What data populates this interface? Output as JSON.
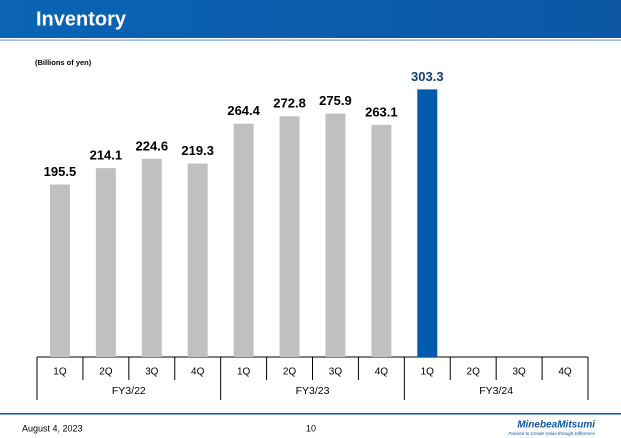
{
  "header": {
    "title": "Inventory"
  },
  "chart_data": {
    "type": "bar",
    "unit_label": "(Billions of yen)",
    "categories": [
      "1Q",
      "2Q",
      "3Q",
      "4Q",
      "1Q",
      "2Q",
      "3Q",
      "4Q",
      "1Q",
      "2Q",
      "3Q",
      "4Q"
    ],
    "groups": [
      "FY3/22",
      "FY3/23",
      "FY3/24"
    ],
    "values": [
      195.5,
      214.1,
      224.6,
      219.3,
      264.4,
      272.8,
      275.9,
      263.1,
      303.3,
      null,
      null,
      null
    ],
    "colors": [
      "#c0c0c0",
      "#c0c0c0",
      "#c0c0c0",
      "#c0c0c0",
      "#c0c0c0",
      "#c0c0c0",
      "#c0c0c0",
      "#c0c0c0",
      "#005bac",
      "#c0c0c0",
      "#c0c0c0",
      "#c0c0c0"
    ],
    "ylim": [
      0,
      340
    ]
  },
  "footer": {
    "date": "August 4, 2023",
    "page": "10",
    "brand": "MinebeaMitsumi",
    "tagline": "Passion to Create Value through Difference"
  }
}
